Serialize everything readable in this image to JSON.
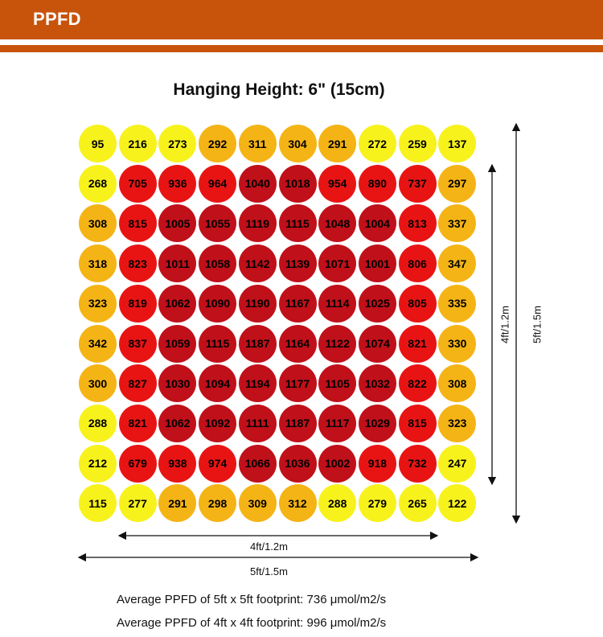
{
  "header": {
    "title": "PPFD"
  },
  "chart_data": {
    "type": "heatmap",
    "title": "Hanging Height: 6\" (15cm)",
    "unit": "μmol/m2/s",
    "rows": [
      [
        95,
        216,
        273,
        292,
        311,
        304,
        291,
        272,
        259,
        137
      ],
      [
        268,
        705,
        936,
        964,
        1040,
        1018,
        954,
        890,
        737,
        297
      ],
      [
        308,
        815,
        1005,
        1055,
        1119,
        1115,
        1048,
        1004,
        813,
        337
      ],
      [
        318,
        823,
        1011,
        1058,
        1142,
        1139,
        1071,
        1001,
        806,
        347
      ],
      [
        323,
        819,
        1062,
        1090,
        1190,
        1167,
        1114,
        1025,
        805,
        335
      ],
      [
        342,
        837,
        1059,
        1115,
        1187,
        1164,
        1122,
        1074,
        821,
        330
      ],
      [
        300,
        827,
        1030,
        1094,
        1194,
        1177,
        1105,
        1032,
        822,
        308
      ],
      [
        288,
        821,
        1062,
        1092,
        1111,
        1187,
        1117,
        1029,
        815,
        323
      ],
      [
        212,
        679,
        938,
        974,
        1066,
        1036,
        1002,
        918,
        732,
        247
      ],
      [
        115,
        277,
        291,
        298,
        309,
        312,
        288,
        279,
        265,
        122
      ]
    ],
    "colors": {
      "low": "#f7f21c",
      "mid": "#f4b415",
      "high": "#e81414",
      "very_high": "#c0101a"
    },
    "dimensions": {
      "inner_horizontal": "4ft/1.2m",
      "outer_horizontal": "5ft/1.5m",
      "inner_vertical": "4ft/1.2m",
      "outer_vertical": "5ft/1.5m"
    }
  },
  "footer": {
    "avg_5ft": "Average PPFD of 5ft x 5ft footprint: 736 μmol/m2/s",
    "avg_4ft": "Average PPFD of 4ft x 4ft footprint: 996 μmol/m2/s"
  }
}
